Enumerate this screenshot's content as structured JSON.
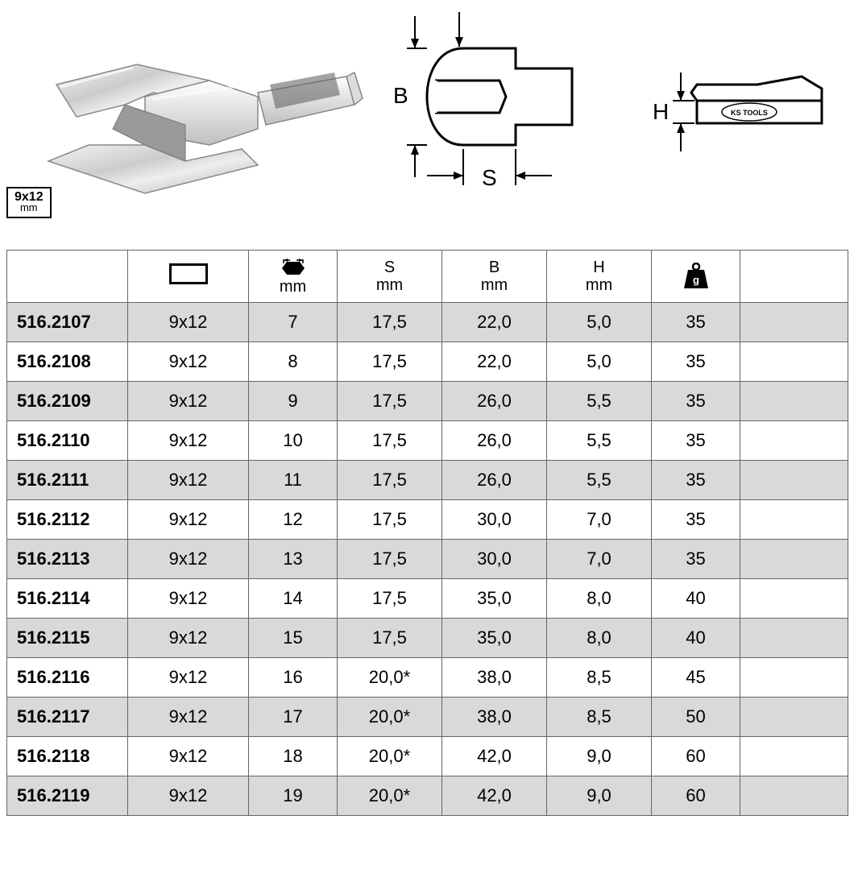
{
  "badge": {
    "line1": "9x12",
    "line2": "mm"
  },
  "diagram": {
    "B": "B",
    "S": "S",
    "H": "H",
    "brand": "KS TOOLS"
  },
  "table": {
    "headers": {
      "size_unit": "mm",
      "s_label": "S",
      "s_unit": "mm",
      "b_label": "B",
      "b_unit": "mm",
      "h_label": "H",
      "h_unit": "mm",
      "weight_unit": "g"
    },
    "rows": [
      {
        "part": "516.2107",
        "size": "9x12",
        "mm": "7",
        "s": "17,5",
        "b": "22,0",
        "h": "5,0",
        "w": "35"
      },
      {
        "part": "516.2108",
        "size": "9x12",
        "mm": "8",
        "s": "17,5",
        "b": "22,0",
        "h": "5,0",
        "w": "35"
      },
      {
        "part": "516.2109",
        "size": "9x12",
        "mm": "9",
        "s": "17,5",
        "b": "26,0",
        "h": "5,5",
        "w": "35"
      },
      {
        "part": "516.2110",
        "size": "9x12",
        "mm": "10",
        "s": "17,5",
        "b": "26,0",
        "h": "5,5",
        "w": "35"
      },
      {
        "part": "516.2111",
        "size": "9x12",
        "mm": "11",
        "s": "17,5",
        "b": "26,0",
        "h": "5,5",
        "w": "35"
      },
      {
        "part": "516.2112",
        "size": "9x12",
        "mm": "12",
        "s": "17,5",
        "b": "30,0",
        "h": "7,0",
        "w": "35"
      },
      {
        "part": "516.2113",
        "size": "9x12",
        "mm": "13",
        "s": "17,5",
        "b": "30,0",
        "h": "7,0",
        "w": "35"
      },
      {
        "part": "516.2114",
        "size": "9x12",
        "mm": "14",
        "s": "17,5",
        "b": "35,0",
        "h": "8,0",
        "w": "40"
      },
      {
        "part": "516.2115",
        "size": "9x12",
        "mm": "15",
        "s": "17,5",
        "b": "35,0",
        "h": "8,0",
        "w": "40"
      },
      {
        "part": "516.2116",
        "size": "9x12",
        "mm": "16",
        "s": "20,0*",
        "b": "38,0",
        "h": "8,5",
        "w": "45"
      },
      {
        "part": "516.2117",
        "size": "9x12",
        "mm": "17",
        "s": "20,0*",
        "b": "38,0",
        "h": "8,5",
        "w": "50"
      },
      {
        "part": "516.2118",
        "size": "9x12",
        "mm": "18",
        "s": "20,0*",
        "b": "42,0",
        "h": "9,0",
        "w": "60"
      },
      {
        "part": "516.2119",
        "size": "9x12",
        "mm": "19",
        "s": "20,0*",
        "b": "42,0",
        "h": "9,0",
        "w": "60"
      }
    ],
    "colors": {
      "odd_bg": "#d9d9d9",
      "even_bg": "#ffffff",
      "border": "#666666"
    }
  }
}
